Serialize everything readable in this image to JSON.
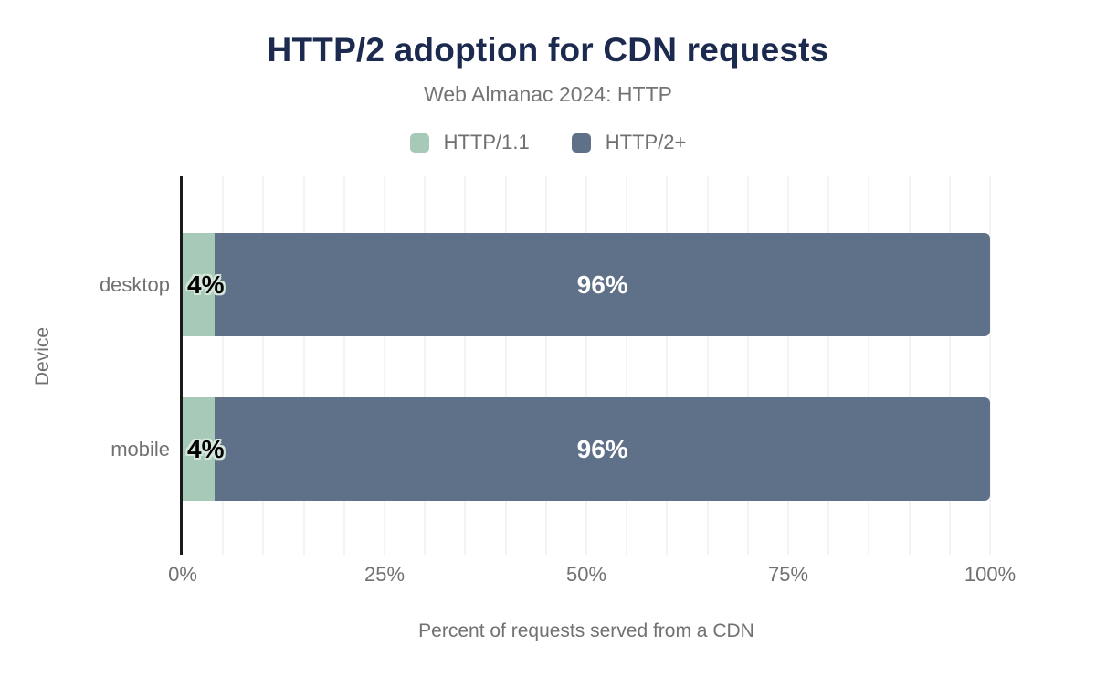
{
  "chart_data": {
    "type": "bar",
    "orientation": "horizontal",
    "stacked": true,
    "title": "HTTP/2 adoption for CDN requests",
    "subtitle": "Web Almanac 2024: HTTP",
    "xlabel": "Percent of requests served from a CDN",
    "ylabel": "Device",
    "categories": [
      "desktop",
      "mobile"
    ],
    "series": [
      {
        "name": "HTTP/1.1",
        "color": "#a7c9b7",
        "values": [
          4,
          4
        ],
        "labels": [
          "4%",
          "4%"
        ]
      },
      {
        "name": "HTTP/2+",
        "color": "#5f7189",
        "values": [
          96,
          96
        ],
        "labels": [
          "96%",
          "96%"
        ]
      }
    ],
    "xlim": [
      0,
      100
    ],
    "xticks": [
      {
        "value": 0,
        "label": "0%"
      },
      {
        "value": 25,
        "label": "25%"
      },
      {
        "value": 50,
        "label": "50%"
      },
      {
        "value": 75,
        "label": "75%"
      },
      {
        "value": 100,
        "label": "100%"
      }
    ],
    "grid": {
      "minor_step_percent": 5,
      "color": "#f4f4f4",
      "axis_line_color": "#1a1a1a"
    },
    "legend_position": "top",
    "colors": {
      "title": "#1b2a4e",
      "muted_text": "#717171",
      "series_http11": "#a7c9b7",
      "series_http2plus": "#5f7189",
      "value_label_outline": "#d5e6db"
    }
  }
}
